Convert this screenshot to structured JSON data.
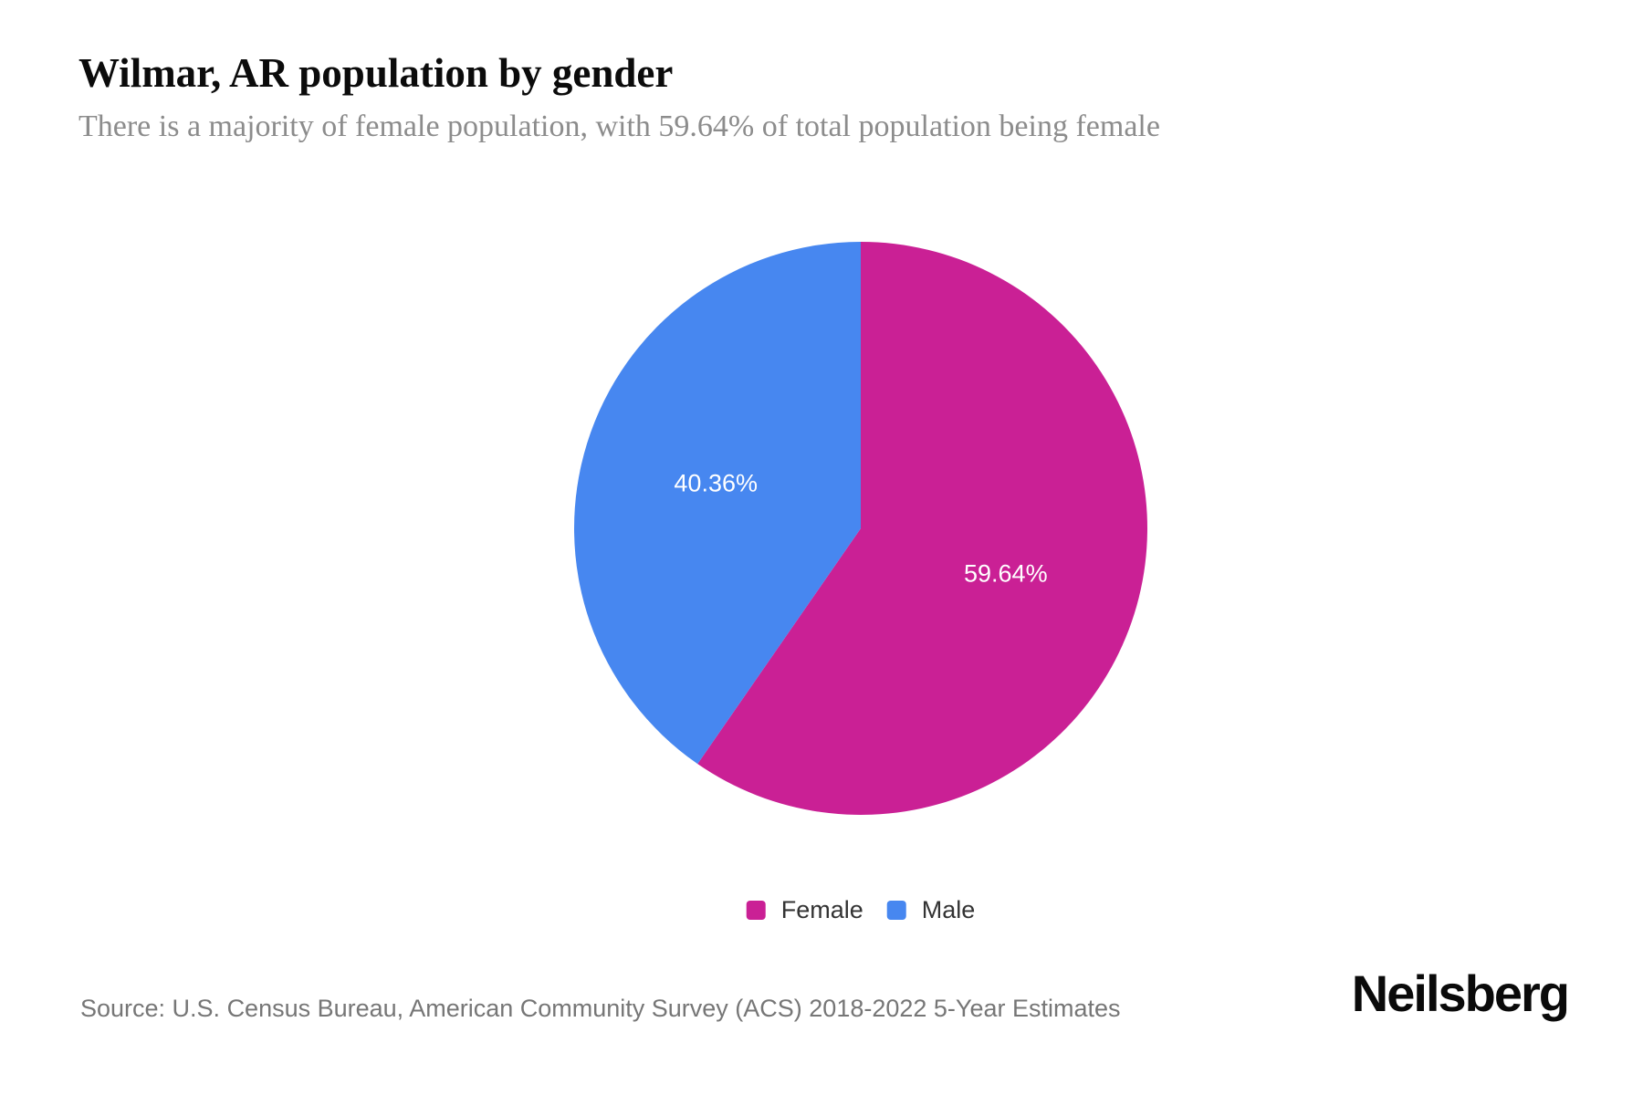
{
  "page": {
    "title": "Wilmar, AR population by gender",
    "subtitle": "There is a majority of female population, with 59.64% of total population being female",
    "source": "Source: U.S. Census Bureau, American Community Survey (ACS) 2018-2022 5-Year Estimates",
    "logo": "Neilsberg"
  },
  "chart_data": {
    "type": "pie",
    "title": "Wilmar, AR population by gender",
    "subtitle": "There is a majority of female population, with 59.64% of total population being female",
    "slices": [
      {
        "label": "Female",
        "value": 59.64,
        "display": "59.64%",
        "color": "#CA2095"
      },
      {
        "label": "Male",
        "value": 40.36,
        "display": "40.36%",
        "color": "#4787F0"
      }
    ],
    "start_angle_deg": 0,
    "direction": "clockwise",
    "label_color": "#ffffff",
    "legend_position": "bottom",
    "legend_labels": [
      "Female",
      "Male"
    ]
  }
}
